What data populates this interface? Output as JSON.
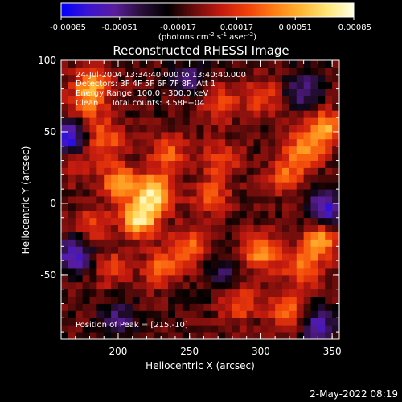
{
  "colorbar": {
    "ticks": [
      "-0.00085",
      "-0.00051",
      "-0.00017",
      "0.00017",
      "0.00051",
      "0.00085"
    ],
    "unit_label_parts": [
      "(photons cm",
      "-2",
      " s",
      "-1",
      " asec",
      "-2",
      ")"
    ]
  },
  "footer": {
    "timestamp": "2-May-2022 08:19"
  },
  "chart_data": {
    "type": "heatmap",
    "title": "Reconstructed RHESSI Image",
    "xlabel": "Heliocentric X (arcsec)",
    "ylabel": "Heliocentric Y (arcsec)",
    "xlim": [
      160,
      355
    ],
    "ylim": [
      -95,
      100
    ],
    "x_ticks": [
      "200",
      "250",
      "300",
      "350"
    ],
    "y_ticks": [
      "100",
      "50",
      "0",
      "-50"
    ],
    "value_range": [
      -0.00085,
      0.00085
    ],
    "colormap": [
      "#0000ff",
      "#3a14d2",
      "#5a1e9c",
      "#2a0f3a",
      "#000000",
      "#6b0c0c",
      "#c21a0f",
      "#f0400a",
      "#ff7d14",
      "#ffb432",
      "#ffe678",
      "#ffffe6"
    ],
    "annotations": [
      "24-Jul-2004 13:34:40.000 to 13:40:40.000",
      "Detectors: 3F 4F 5F 6F 7F 8F, Att 1",
      "Energy Range: 100.0 - 300.0 keV",
      "Clean     Total counts: 3.58E+04"
    ],
    "peak_label": "Position of Peak = [215,-10]",
    "peak": {
      "x": 215,
      "y": -10,
      "value": 0.00085
    },
    "features": [
      {
        "x": 215,
        "y": -10,
        "value": 0.00085
      },
      {
        "x": 225,
        "y": 8,
        "value": 0.0008
      },
      {
        "x": 200,
        "y": 15,
        "value": 0.00055
      },
      {
        "x": 235,
        "y": 35,
        "value": 0.0004
      },
      {
        "x": 190,
        "y": 45,
        "value": 0.00045
      },
      {
        "x": 182,
        "y": 85,
        "value": 0.0005
      },
      {
        "x": 178,
        "y": 70,
        "value": 0.00045
      },
      {
        "x": 345,
        "y": 52,
        "value": 0.0006
      },
      {
        "x": 330,
        "y": 38,
        "value": 0.0005
      },
      {
        "x": 318,
        "y": 20,
        "value": 0.0004
      },
      {
        "x": 265,
        "y": 5,
        "value": 0.0004
      },
      {
        "x": 272,
        "y": 30,
        "value": 0.00035
      },
      {
        "x": 250,
        "y": -30,
        "value": 0.00045
      },
      {
        "x": 230,
        "y": -45,
        "value": 0.0004
      },
      {
        "x": 300,
        "y": -35,
        "value": 0.00055
      },
      {
        "x": 342,
        "y": -25,
        "value": 0.0006
      },
      {
        "x": 330,
        "y": -45,
        "value": 0.0005
      },
      {
        "x": 285,
        "y": -70,
        "value": 0.0004
      },
      {
        "x": 320,
        "y": -75,
        "value": 0.00045
      },
      {
        "x": 195,
        "y": -45,
        "value": 0.0003
      },
      {
        "x": 180,
        "y": -15,
        "value": 0.00035
      },
      {
        "x": 300,
        "y": 75,
        "value": 0.00035
      },
      {
        "x": 270,
        "y": 70,
        "value": 0.00035
      },
      {
        "x": 170,
        "y": 30,
        "value": 0.0003
      },
      {
        "x": 165,
        "y": 45,
        "value": -0.0007
      },
      {
        "x": 170,
        "y": -35,
        "value": -0.00055
      },
      {
        "x": 345,
        "y": -5,
        "value": -0.0006
      },
      {
        "x": 340,
        "y": -85,
        "value": -0.0005
      },
      {
        "x": 330,
        "y": 80,
        "value": -0.0004
      },
      {
        "x": 250,
        "y": 88,
        "value": -0.00035
      },
      {
        "x": 200,
        "y": -80,
        "value": -0.00035
      },
      {
        "x": 275,
        "y": -50,
        "value": -0.0003
      }
    ]
  }
}
